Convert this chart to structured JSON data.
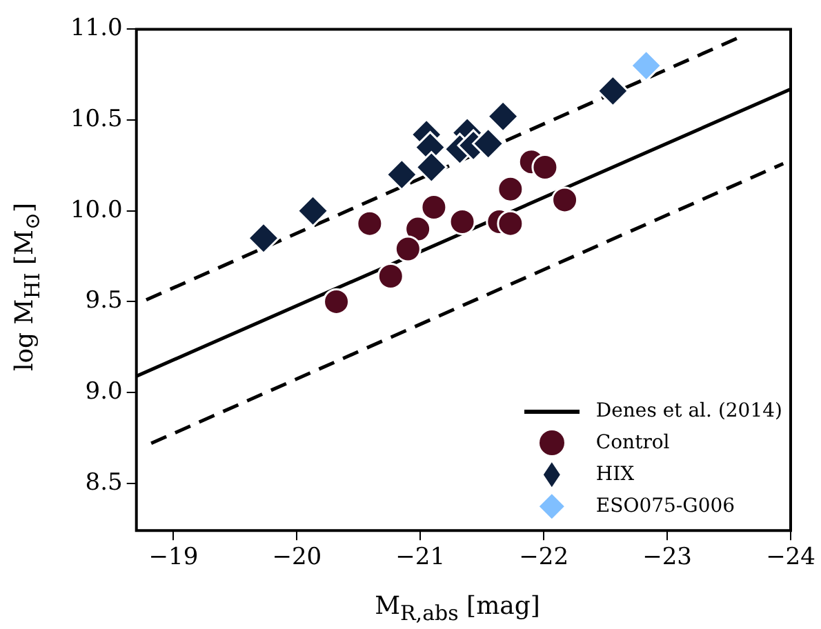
{
  "chart_data": {
    "type": "scatter",
    "xlabel": "M$_{R,abs}$ [mag]",
    "ylabel": "log M$_{HI}$ [M$_{⊙}$]",
    "xlim": [
      -18.7,
      -24
    ],
    "xticks": [
      -19,
      -20,
      -21,
      -22,
      -23,
      -24
    ],
    "ylim": [
      8.24,
      11.0
    ],
    "yticks": [
      8.5,
      {
        "value": 9,
        "label": "9.0"
      },
      9.5,
      {
        "value": 10,
        "label": "10.0"
      },
      10.5,
      {
        "value": 11,
        "label": "11.0"
      }
    ],
    "grid": false,
    "legend": "bottom right",
    "series": [
      {
        "name": "Denes et al. (2014)",
        "type": "line",
        "color": "#000000",
        "line_style": "solid",
        "x": [
          -18.7,
          -24
        ],
        "values": [
          9.09,
          10.67
        ]
      },
      {
        "type": "line",
        "color": "#000000",
        "line_style": "dashed",
        "x": [
          -18.78,
          -23.6
        ],
        "values": [
          9.51,
          10.96
        ]
      },
      {
        "type": "line",
        "color": "#000000",
        "line_style": "dashed",
        "x": [
          -18.82,
          -23.94
        ],
        "values": [
          8.72,
          10.26
        ]
      },
      {
        "name": "Control",
        "color": "#500a1e",
        "marker": "circle",
        "x": [
          -20.32,
          -20.59,
          -20.98,
          -20.9,
          -21.11,
          -20.76,
          -21.34,
          -21.64,
          -21.73,
          -21.73,
          -21.9,
          -22.01,
          -22.17
        ],
        "values": [
          9.5,
          9.93,
          9.9,
          9.79,
          10.02,
          9.64,
          9.94,
          9.94,
          9.93,
          10.12,
          10.27,
          10.24,
          10.06
        ]
      },
      {
        "name": "HIX",
        "color": "#0d1f3c",
        "marker": "diamond",
        "x": [
          -19.73,
          -20.13,
          -20.85,
          -21.05,
          -21.08,
          -21.09,
          -21.38,
          -21.32,
          -21.43,
          -21.55,
          -21.67,
          -22.56
        ],
        "values": [
          9.85,
          10.0,
          10.2,
          10.42,
          10.35,
          10.24,
          10.43,
          10.34,
          10.36,
          10.37,
          10.52,
          10.66
        ]
      },
      {
        "name": "ESO075-G006",
        "color": "#80bfff",
        "marker": "diamond",
        "x": [
          -22.83
        ],
        "values": [
          10.8
        ]
      }
    ]
  }
}
